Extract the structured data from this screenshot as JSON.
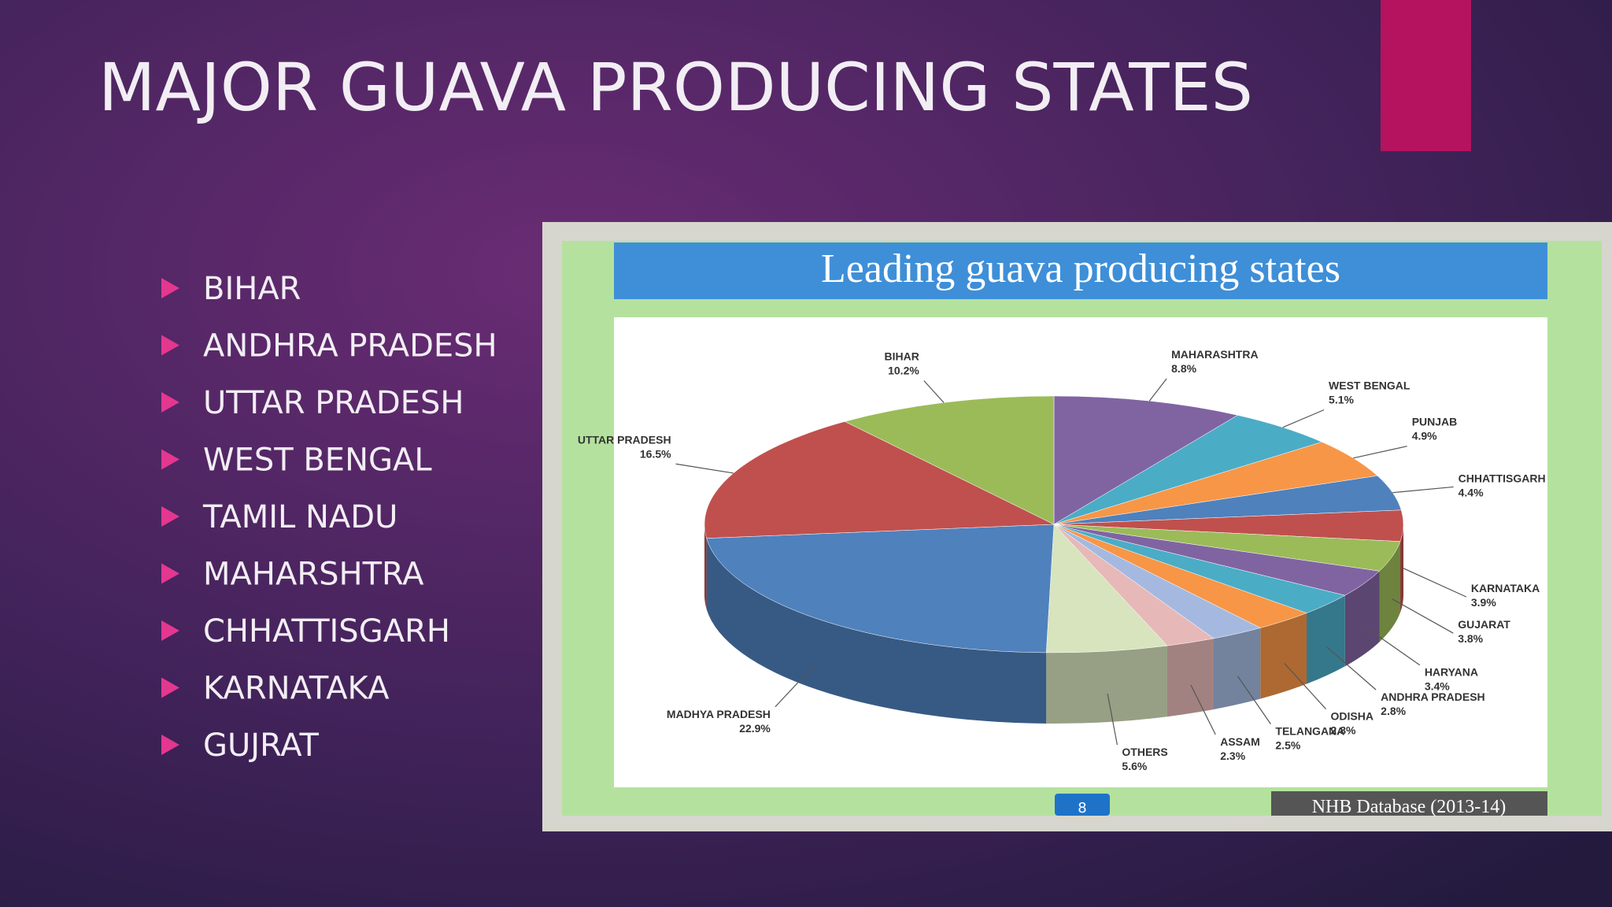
{
  "slide": {
    "title": "MAJOR GUAVA PRODUCING STATES",
    "bullets": [
      "BIHAR",
      "ANDHRA PRADESH",
      "UTTAR PRADESH",
      "WEST BENGAL",
      "TAMIL NADU",
      "MAHARSHTRA",
      "CHHATTISGARH",
      "KARNATAKA",
      "GUJRAT"
    ]
  },
  "chart_data": {
    "type": "pie",
    "title": "Leading guava producing states",
    "source": "NHB Database (2013-14)",
    "page_number": "8",
    "categories": [
      "MAHARASHTRA",
      "WEST BENGAL",
      "PUNJAB",
      "CHHATTISGARH",
      "KARNATAKA",
      "GUJARAT",
      "HARYANA",
      "ANDHRA PRADESH",
      "ODISHA",
      "TELANGANA",
      "ASSAM",
      "OTHERS",
      "MADHYA PRADESH",
      "UTTAR PRADESH",
      "BIHAR"
    ],
    "values": [
      8.8,
      5.1,
      4.9,
      4.4,
      3.9,
      3.8,
      3.4,
      2.8,
      2.8,
      2.5,
      2.3,
      5.6,
      22.9,
      16.5,
      10.2
    ],
    "value_labels": [
      "8.8%",
      "5.1%",
      "4.9%",
      "4.4%",
      "3.9%",
      "3.8%",
      "3.4%",
      "2.8%",
      "2.8%",
      "2.5%",
      "2.3%",
      "5.6%",
      "22.9%",
      "16.5%",
      "10.2%"
    ],
    "colors": [
      "#8064a2",
      "#4bacc6",
      "#f79646",
      "#4f81bd",
      "#c0504d",
      "#9bbb59",
      "#8064a2",
      "#4bacc6",
      "#f79646",
      "#a5b9e0",
      "#e6b9b8",
      "#d7e4bd",
      "#4f81bd",
      "#c0504d",
      "#9bbb59"
    ]
  }
}
